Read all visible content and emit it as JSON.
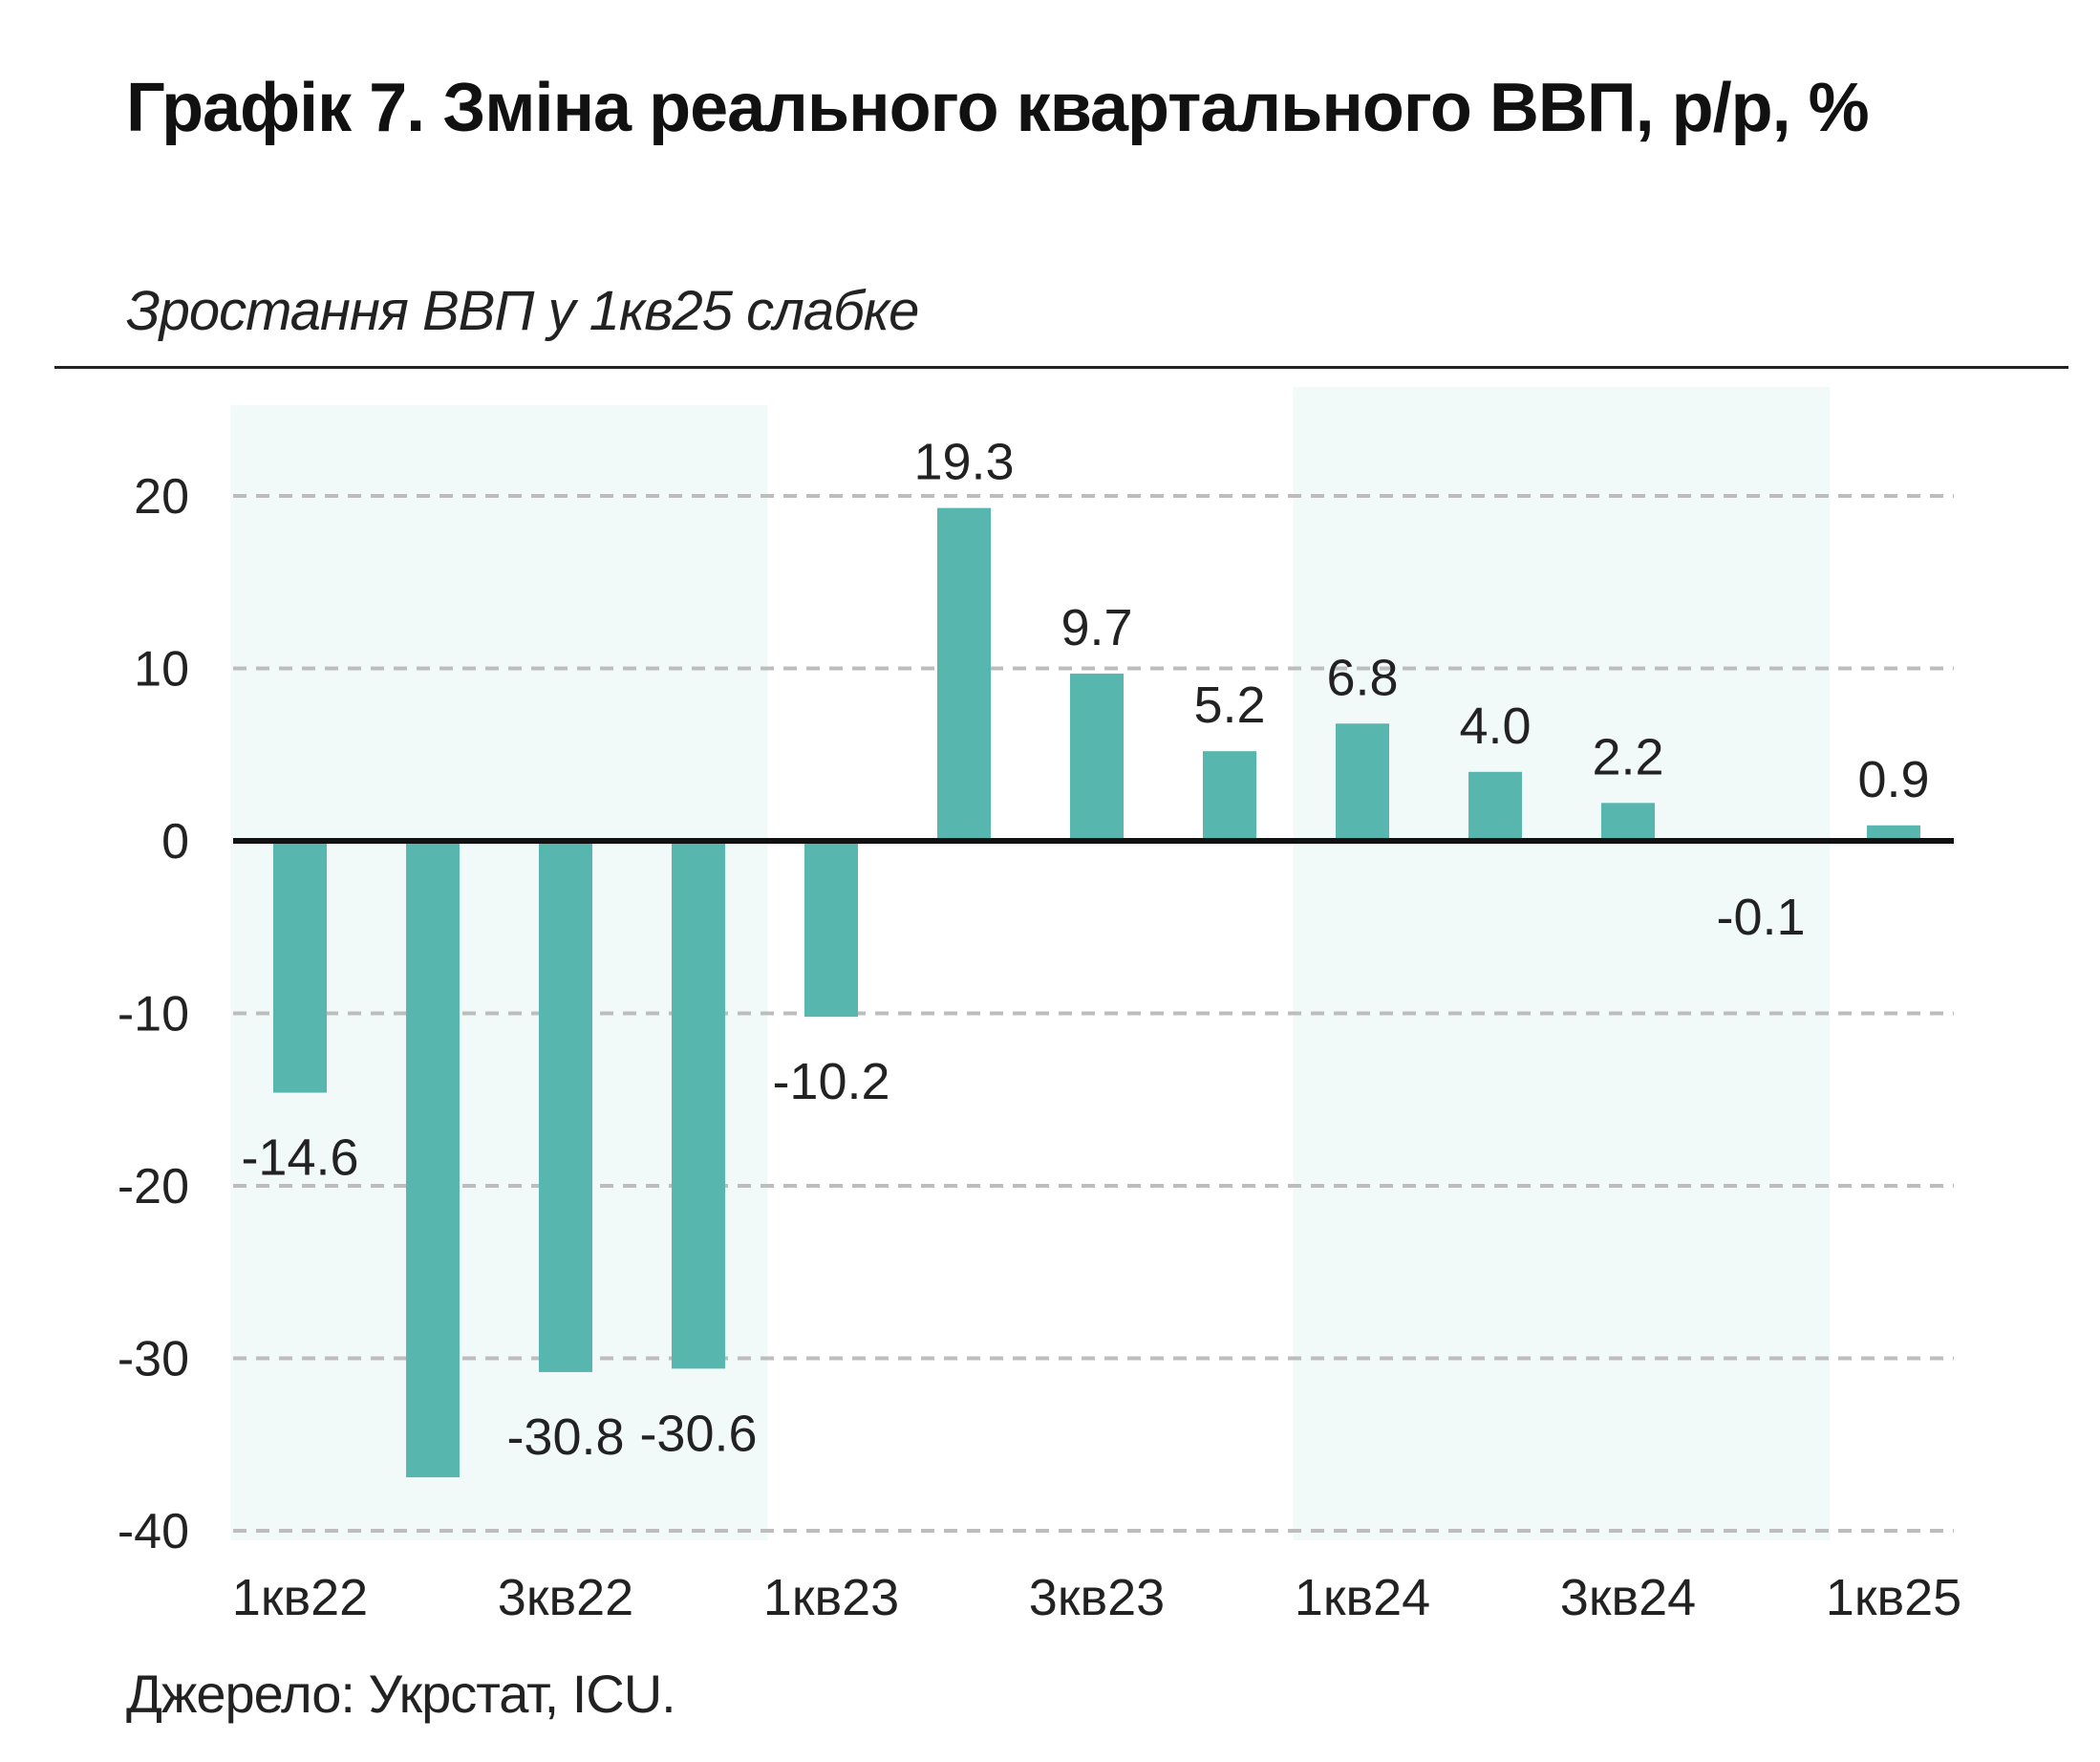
{
  "title": "Графік 7. Зміна реального квартального ВВП, р/р, %",
  "subtitle": "Зростання ВВП у 1кв25 слабке",
  "source": "Джерело: Укрстат, ICU.",
  "colors": {
    "bar": "#57b6ad",
    "shade": "#f1faf8",
    "grid": "#bdbdbd",
    "zero_line": "#111111",
    "text": "#222222"
  },
  "chart_data": {
    "type": "bar",
    "categories": [
      "1кв22",
      "2кв22",
      "3кв22",
      "4кв22",
      "1кв23",
      "2кв23",
      "3кв23",
      "4кв23",
      "1кв24",
      "2кв24",
      "3кв24",
      "4кв24",
      "1кв25"
    ],
    "visible_tick_labels": [
      "1кв22",
      "",
      "3кв22",
      "",
      "1кв23",
      "",
      "3кв23",
      "",
      "1кв24",
      "",
      "3кв24",
      "",
      "1кв25"
    ],
    "values": [
      -14.6,
      -36.9,
      -30.8,
      -30.6,
      -10.2,
      19.3,
      9.7,
      5.2,
      6.8,
      4.0,
      2.2,
      -0.1,
      0.9
    ],
    "data_labels": [
      "-14.6",
      "",
      "-30.8",
      "-30.6",
      "-10.2",
      "19.3",
      "9.7",
      "5.2",
      "6.8",
      "4.0",
      "2.2",
      "-0.1",
      "0.9"
    ],
    "ylim": [
      -40,
      25
    ],
    "yticks": [
      20,
      10,
      0,
      -10,
      -20,
      -30,
      -40
    ],
    "ytick_labels": [
      "20",
      "10",
      "0",
      "-10",
      "-20",
      "-30",
      "-40"
    ],
    "grid": "dashed horizontal",
    "shaded_ranges": [
      [
        "1кв22",
        "4кв22"
      ],
      [
        "1кв24",
        "4кв24"
      ]
    ],
    "xlabel": "",
    "ylabel": ""
  }
}
